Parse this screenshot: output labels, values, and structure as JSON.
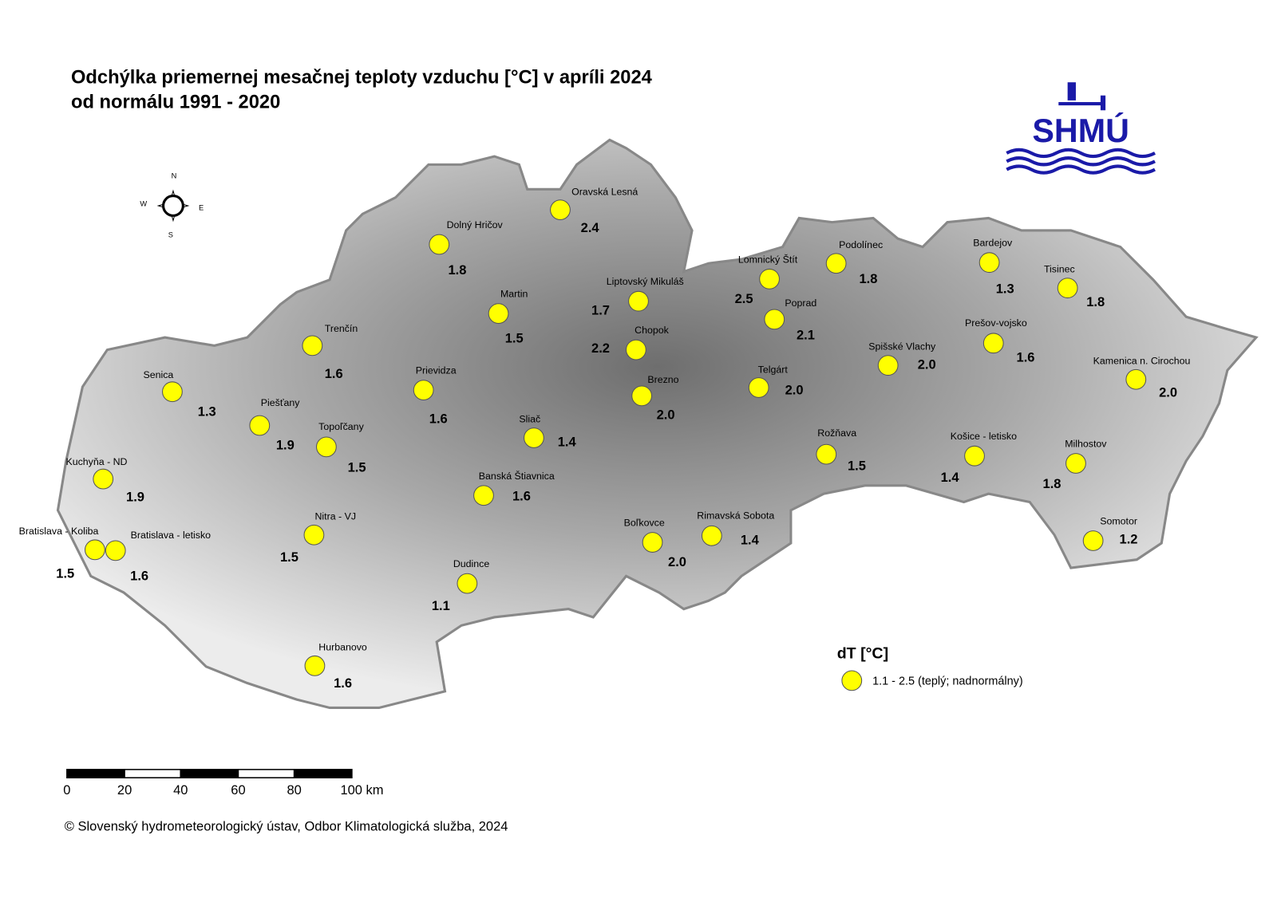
{
  "title": {
    "line1": "Odchýlka priemernej mesačnej teploty vzduchu [°C] v apríli 2024",
    "line2": "od normálu 1991 - 2020"
  },
  "logo": {
    "text": "SHMÚ"
  },
  "compass": {
    "n": "N",
    "s": "S",
    "e": "E",
    "w": "W"
  },
  "stations": [
    {
      "name": "Oravská Lesná",
      "value": "2.4"
    },
    {
      "name": "Dolný Hričov",
      "value": "1.8"
    },
    {
      "name": "Martin",
      "value": "1.5"
    },
    {
      "name": "Liptovský Mikuláš",
      "value": "1.7"
    },
    {
      "name": "Chopok",
      "value": "2.2"
    },
    {
      "name": "Lomnický Štít",
      "value": "2.5"
    },
    {
      "name": "Podolínec",
      "value": "1.8"
    },
    {
      "name": "Poprad",
      "value": "2.1"
    },
    {
      "name": "Bardejov",
      "value": "1.3"
    },
    {
      "name": "Tisinec",
      "value": "1.8"
    },
    {
      "name": "Prešov-vojsko",
      "value": "1.6"
    },
    {
      "name": "Spišské Vlachy",
      "value": "2.0"
    },
    {
      "name": "Kamenica n. Cirochou",
      "value": "2.0"
    },
    {
      "name": "Telgárt",
      "value": "2.0"
    },
    {
      "name": "Brezno",
      "value": "2.0"
    },
    {
      "name": "Trenčín",
      "value": "1.6"
    },
    {
      "name": "Senica",
      "value": "1.3"
    },
    {
      "name": "Prievidza",
      "value": "1.6"
    },
    {
      "name": "Piešťany",
      "value": "1.9"
    },
    {
      "name": "Topoľčany",
      "value": "1.5"
    },
    {
      "name": "Sliač",
      "value": "1.4"
    },
    {
      "name": "Rožňava",
      "value": "1.5"
    },
    {
      "name": "Košice - letisko",
      "value": "1.4"
    },
    {
      "name": "Milhostov",
      "value": "1.8"
    },
    {
      "name": "Kuchyňa - ND",
      "value": "1.9"
    },
    {
      "name": "Banská Štiavnica",
      "value": "1.6"
    },
    {
      "name": "Nitra - VJ",
      "value": "1.5"
    },
    {
      "name": "Bratislava - Koliba",
      "value": "1.5"
    },
    {
      "name": "Bratislava - letisko",
      "value": "1.6"
    },
    {
      "name": "Boľkovce",
      "value": "2.0"
    },
    {
      "name": "Rimavská Sobota",
      "value": "1.4"
    },
    {
      "name": "Somotor",
      "value": "1.2"
    },
    {
      "name": "Dudince",
      "value": "1.1"
    },
    {
      "name": "Hurbanovo",
      "value": "1.6"
    }
  ],
  "legend": {
    "title": "dT [°C]",
    "entry": "1.1 - 2.5 (teplý; nadnormálny)"
  },
  "scale_bar": {
    "labels": [
      "0",
      "20",
      "40",
      "60",
      "80",
      "100 km"
    ]
  },
  "footer": "© Slovenský hydrometeorologický ústav, Odbor Klimatologická služba, 2024"
}
